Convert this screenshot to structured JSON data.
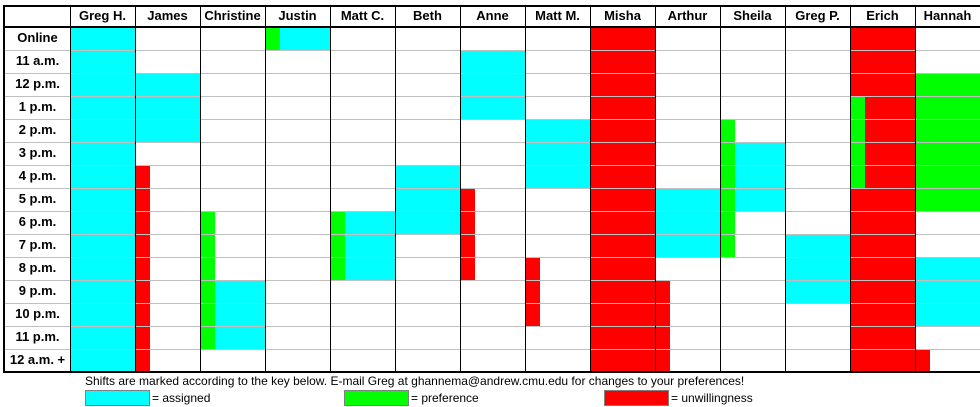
{
  "colors": {
    "assigned": "#00ffff",
    "preference": "#00ff00",
    "unwillingness": "#ff0000",
    "grid": "#c0c0c0",
    "border": "#000000"
  },
  "columns": [
    "Greg H.",
    "James",
    "Christine",
    "Justin",
    "Matt C.",
    "Beth",
    "Anne",
    "Matt M.",
    "Misha",
    "Arthur",
    "Sheila",
    "Greg P.",
    "Erich",
    "Hannah"
  ],
  "rows": [
    "Online",
    "11 a.m.",
    "12 p.m.",
    "1 p.m.",
    "2 p.m.",
    "3 p.m.",
    "4 p.m.",
    "5 p.m.",
    "6 p.m.",
    "7 p.m.",
    "8 p.m.",
    "9 p.m.",
    "10 p.m.",
    "11 p.m.",
    "12 a.m. +"
  ],
  "shifts": [
    {
      "person": "Greg H.",
      "type": "assigned",
      "from": "Online",
      "to": "12 a.m. +"
    },
    {
      "person": "James",
      "type": "assigned",
      "from": "12 p.m.",
      "to": "2 p.m."
    },
    {
      "person": "James",
      "type": "unwillingness",
      "from": "4 p.m.",
      "to": "12 a.m. +"
    },
    {
      "person": "Christine",
      "type": "preference",
      "from": "6 p.m.",
      "to": "11 p.m."
    },
    {
      "person": "Christine",
      "type": "assigned",
      "from": "9 p.m.",
      "to": "11 p.m."
    },
    {
      "person": "Justin",
      "type": "preference",
      "from": "Online",
      "to": "Online"
    },
    {
      "person": "Justin",
      "type": "assigned",
      "from": "Online",
      "to": "Online"
    },
    {
      "person": "Matt C.",
      "type": "preference",
      "from": "6 p.m.",
      "to": "8 p.m."
    },
    {
      "person": "Matt C.",
      "type": "assigned",
      "from": "6 p.m.",
      "to": "8 p.m."
    },
    {
      "person": "Beth",
      "type": "assigned",
      "from": "4 p.m.",
      "to": "6 p.m."
    },
    {
      "person": "Anne",
      "type": "assigned",
      "from": "11 a.m.",
      "to": "1 p.m."
    },
    {
      "person": "Anne",
      "type": "unwillingness",
      "from": "5 p.m.",
      "to": "8 p.m."
    },
    {
      "person": "Matt M.",
      "type": "assigned",
      "from": "2 p.m.",
      "to": "4 p.m."
    },
    {
      "person": "Matt M.",
      "type": "unwillingness",
      "from": "8 p.m.",
      "to": "10 p.m."
    },
    {
      "person": "Misha",
      "type": "unwillingness",
      "from": "Online",
      "to": "12 a.m. +"
    },
    {
      "person": "Arthur",
      "type": "assigned",
      "from": "5 p.m.",
      "to": "7 p.m."
    },
    {
      "person": "Arthur",
      "type": "unwillingness",
      "from": "9 p.m.",
      "to": "12 a.m. +"
    },
    {
      "person": "Sheila",
      "type": "preference",
      "from": "2 p.m.",
      "to": "7 p.m."
    },
    {
      "person": "Sheila",
      "type": "assigned",
      "from": "3 p.m.",
      "to": "5 p.m."
    },
    {
      "person": "Greg P.",
      "type": "assigned",
      "from": "7 p.m.",
      "to": "9 p.m."
    },
    {
      "person": "Erich",
      "type": "preference",
      "from": "1 p.m.",
      "to": "4 p.m."
    },
    {
      "person": "Erich",
      "type": "unwillingness",
      "from": "Online",
      "to": "12 a.m. +"
    },
    {
      "person": "Hannah",
      "type": "preference",
      "from": "12 p.m.",
      "to": "5 p.m."
    },
    {
      "person": "Hannah",
      "type": "assigned",
      "from": "8 p.m.",
      "to": "10 p.m."
    },
    {
      "person": "Hannah",
      "type": "unwillingness",
      "from": "12 a.m. +",
      "to": "12 a.m. +"
    }
  ],
  "footer": {
    "note": "Shifts are marked according to the key below.  E-mail Greg at ghannema@andrew.cmu.edu for changes to your preferences!",
    "key_assigned": "= assigned",
    "key_preference": "= preference",
    "key_unwillingness": "= unwillingness"
  }
}
